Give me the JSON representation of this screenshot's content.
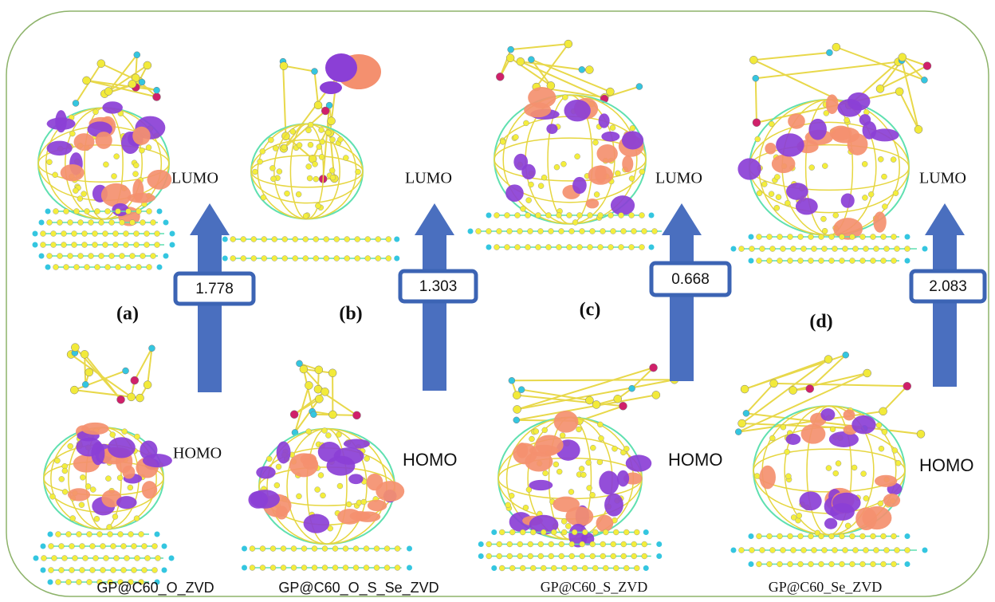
{
  "panels": [
    {
      "label": "(a)",
      "lumo": "LUMO",
      "homo": "HOMO",
      "gap": 1.778,
      "name": "GP@C60_O_ZVD"
    },
    {
      "label": "(b)",
      "lumo": "LUMO",
      "homo": "HOMO",
      "gap": 1.303,
      "name": "GP@C60_O_S_Se_ZVD"
    },
    {
      "label": "(c)",
      "lumo": "LUMO",
      "homo": "HOMO",
      "gap": 0.668,
      "name": "GP@C60_S_ZVD"
    },
    {
      "label": "(d)",
      "lumo": "LUMO",
      "homo": "HOMO",
      "gap": 2.083,
      "name": "GP@C60_Se_ZVD"
    }
  ]
}
